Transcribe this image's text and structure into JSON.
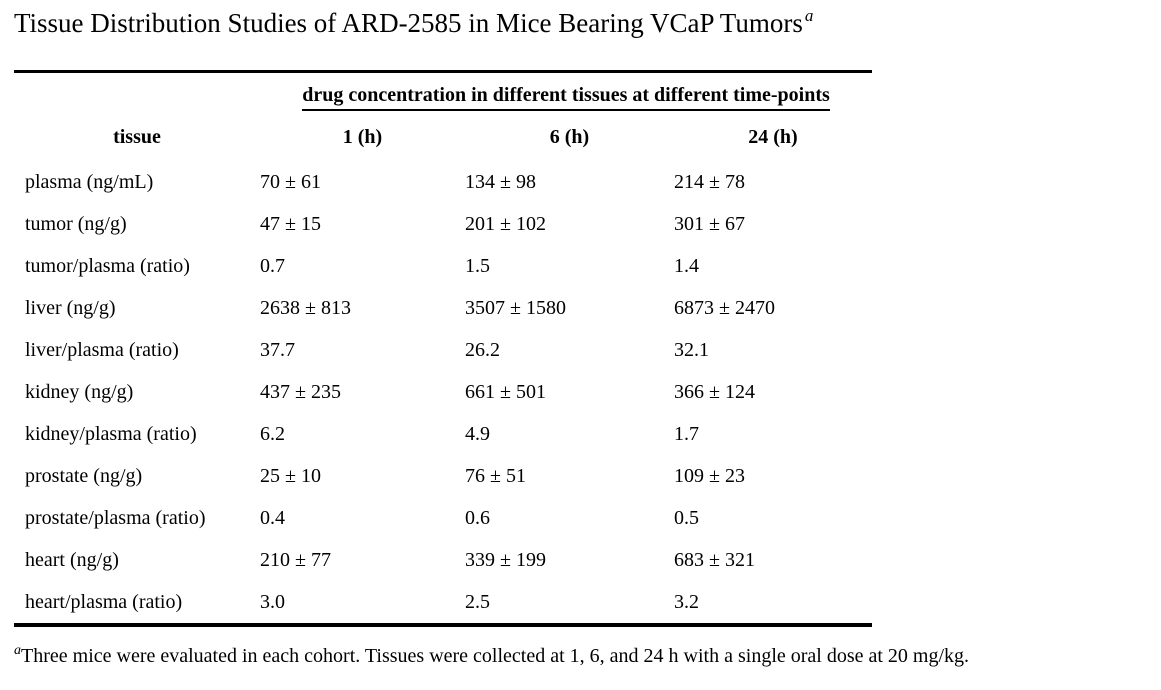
{
  "title": {
    "text": "Tissue Distribution Studies of ARD-2585 in Mice Bearing VCaP Tumors",
    "superscript": "a"
  },
  "table": {
    "span_header": "drug concentration in different tissues at different time-points",
    "columns": [
      "tissue",
      "1 (h)",
      "6 (h)",
      "24 (h)"
    ],
    "rows": [
      {
        "tissue": "plasma (ng/mL)",
        "h1": "70 ± 61",
        "h6": "134 ± 98",
        "h24": "214 ± 78"
      },
      {
        "tissue": "tumor (ng/g)",
        "h1": "47 ± 15",
        "h6": "201 ± 102",
        "h24": "301 ± 67"
      },
      {
        "tissue": "tumor/plasma (ratio)",
        "h1": "0.7",
        "h6": "1.5",
        "h24": "1.4"
      },
      {
        "tissue": "liver (ng/g)",
        "h1": "2638 ± 813",
        "h6": "3507 ± 1580",
        "h24": "6873 ± 2470"
      },
      {
        "tissue": "liver/plasma (ratio)",
        "h1": "37.7",
        "h6": "26.2",
        "h24": "32.1"
      },
      {
        "tissue": "kidney (ng/g)",
        "h1": "437 ± 235",
        "h6": "661 ± 501",
        "h24": "366 ± 124"
      },
      {
        "tissue": "kidney/plasma (ratio)",
        "h1": "6.2",
        "h6": "4.9",
        "h24": "1.7"
      },
      {
        "tissue": "prostate (ng/g)",
        "h1": "25 ± 10",
        "h6": "76 ± 51",
        "h24": "109 ± 23"
      },
      {
        "tissue": "prostate/plasma (ratio)",
        "h1": "0.4",
        "h6": "0.6",
        "h24": "0.5"
      },
      {
        "tissue": "heart (ng/g)",
        "h1": "210 ± 77",
        "h6": "339 ± 199",
        "h24": "683 ± 321"
      },
      {
        "tissue": "heart/plasma (ratio)",
        "h1": "3.0",
        "h6": "2.5",
        "h24": "3.2"
      }
    ]
  },
  "footnote": {
    "marker": "a",
    "text": "Three mice were evaluated in each cohort. Tissues were collected at 1, 6, and 24 h with a single oral dose at 20 mg/kg."
  },
  "colors": {
    "text": "#000000",
    "background": "#ffffff",
    "rule": "#000000"
  }
}
